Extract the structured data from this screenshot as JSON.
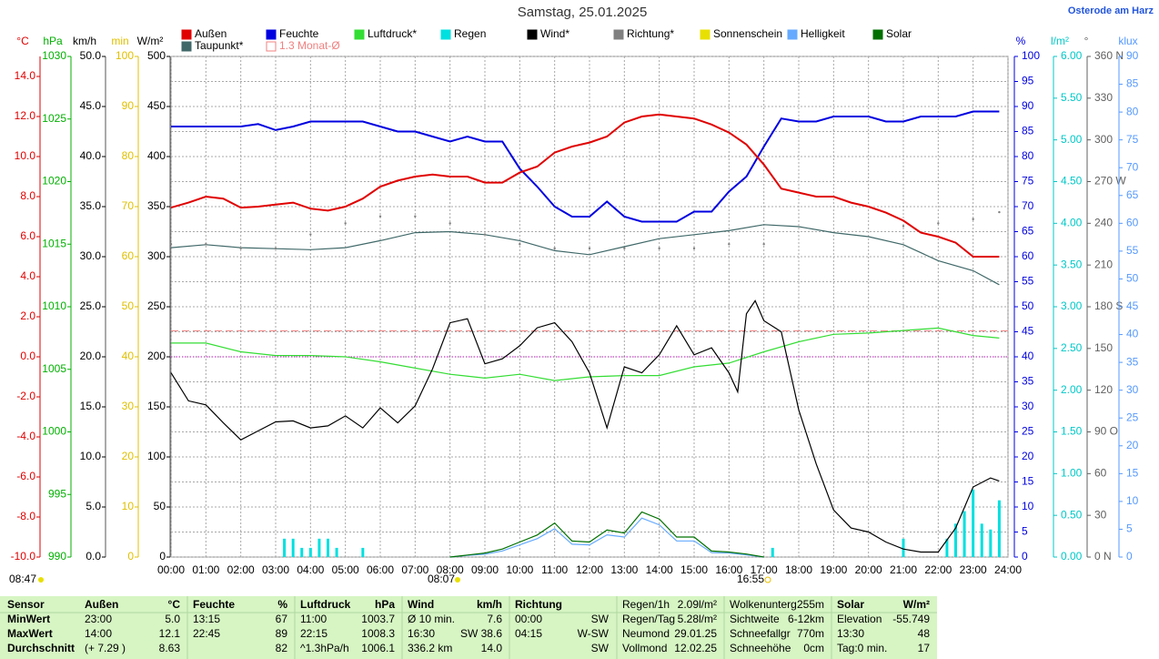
{
  "chart_data": {
    "type": "weather",
    "title": "Samstag, 25.01.2025",
    "location": "Osterode am Harz",
    "legend": [
      {
        "name": "Außen",
        "color": "#e00000"
      },
      {
        "name": "Feuchte",
        "color": "#0000e0"
      },
      {
        "name": "Luftdruck*",
        "color": "#33dd33"
      },
      {
        "name": "Regen",
        "color": "#00e0e0"
      },
      {
        "name": "Wind*",
        "color": "#000000"
      },
      {
        "name": "Richtung*",
        "color": "#808080"
      },
      {
        "name": "Sonnenschein",
        "color": "#e8e000"
      },
      {
        "name": "Helligkeit",
        "color": "#66aaff"
      },
      {
        "name": "Solar",
        "color": "#007000"
      },
      {
        "name": "Taupunkt*",
        "color": "#406868"
      },
      {
        "name": "1.3 Monat-Ø",
        "color": "#f08080"
      }
    ],
    "monthly_avg": 1.3,
    "xlim": [
      0,
      24
    ],
    "xticks": [
      {
        "value": 0,
        "label": "00:00"
      },
      {
        "value": 1,
        "label": "01:00"
      },
      {
        "value": 2,
        "label": "02:00"
      },
      {
        "value": 3,
        "label": "03:00"
      },
      {
        "value": 4,
        "label": "04:00"
      },
      {
        "value": 5,
        "label": "05:00"
      },
      {
        "value": 6,
        "label": "06:00"
      },
      {
        "value": 7,
        "label": "07:00"
      },
      {
        "value": 8,
        "label": "08:00"
      },
      {
        "value": 9,
        "label": "09:00"
      },
      {
        "value": 10,
        "label": "10:00"
      },
      {
        "value": 11,
        "label": "11:00"
      },
      {
        "value": 12,
        "label": "12:00"
      },
      {
        "value": 13,
        "label": "13:00"
      },
      {
        "value": 14,
        "label": "14:00"
      },
      {
        "value": 15,
        "label": "15:00"
      },
      {
        "value": 16,
        "label": "16:00"
      },
      {
        "value": 17,
        "label": "17:00"
      },
      {
        "value": 18,
        "label": "18:00"
      },
      {
        "value": 19,
        "label": "19:00"
      },
      {
        "value": 20,
        "label": "20:00"
      },
      {
        "value": 21,
        "label": "21:00"
      },
      {
        "value": 22,
        "label": "22:00"
      },
      {
        "value": 23,
        "label": "23:00"
      },
      {
        "value": 24,
        "label": "24:00"
      }
    ],
    "axes": [
      {
        "unit": "°C",
        "color": "#e00000",
        "lim": [
          -10,
          15
        ],
        "ticks": [
          {
            "value": -10,
            "label": "-10.0"
          },
          {
            "value": -8,
            "label": "-8.0"
          },
          {
            "value": -6,
            "label": "-6.0"
          },
          {
            "value": -4,
            "label": "-4.0"
          },
          {
            "value": -2,
            "label": "-2.0"
          },
          {
            "value": 0,
            "label": "0.0"
          },
          {
            "value": 2,
            "label": "2.0"
          },
          {
            "value": 4,
            "label": "4.0"
          },
          {
            "value": 6,
            "label": "6.0"
          },
          {
            "value": 8,
            "label": "8.0"
          },
          {
            "value": 10,
            "label": "10.0"
          },
          {
            "value": 12,
            "label": "12.0"
          },
          {
            "value": 14,
            "label": "14.0"
          }
        ]
      },
      {
        "unit": "hPa",
        "color": "#00b000",
        "lim": [
          990,
          1030
        ],
        "ticks": [
          990,
          995,
          1000,
          1005,
          1010,
          1015,
          1020,
          1025,
          1030
        ]
      },
      {
        "unit": "km/h",
        "color": "#000000",
        "lim": [
          0,
          50
        ],
        "ticks": [
          {
            "value": 0,
            "label": "0.0"
          },
          {
            "value": 5,
            "label": "5.0"
          },
          {
            "value": 10,
            "label": "10.0"
          },
          {
            "value": 15,
            "label": "15.0"
          },
          {
            "value": 20,
            "label": "20.0"
          },
          {
            "value": 25,
            "label": "25.0"
          },
          {
            "value": 30,
            "label": "30.0"
          },
          {
            "value": 35,
            "label": "35.0"
          },
          {
            "value": 40,
            "label": "40.0"
          },
          {
            "value": 45,
            "label": "45.0"
          },
          {
            "value": 50,
            "label": "50.0"
          }
        ]
      },
      {
        "unit": "min",
        "color": "#e0c000",
        "lim": [
          0,
          100
        ],
        "ticks": [
          0,
          10,
          20,
          30,
          40,
          50,
          60,
          70,
          80,
          90,
          100
        ]
      },
      {
        "unit": "W/m²",
        "color": "#000000",
        "lim": [
          0,
          500
        ],
        "ticks": [
          0,
          50,
          100,
          150,
          200,
          250,
          300,
          350,
          400,
          450,
          500
        ]
      },
      {
        "unit": "%",
        "color": "#0000e0",
        "lim": [
          0,
          100
        ],
        "ticks": [
          0,
          5,
          10,
          15,
          20,
          25,
          30,
          35,
          40,
          45,
          50,
          55,
          60,
          65,
          70,
          75,
          80,
          85,
          90,
          95,
          100
        ]
      },
      {
        "unit": "l/m²",
        "color": "#00c8c8",
        "lim": [
          0,
          6
        ],
        "ticks": [
          {
            "value": 0,
            "label": "0.00"
          },
          {
            "value": 0.5,
            "label": "0.50"
          },
          {
            "value": 1,
            "label": "1.00"
          },
          {
            "value": 1.5,
            "label": "1.50"
          },
          {
            "value": 2,
            "label": "2.00"
          },
          {
            "value": 2.5,
            "label": "2.50"
          },
          {
            "value": 3,
            "label": "3.00"
          },
          {
            "value": 3.5,
            "label": "3.50"
          },
          {
            "value": 4,
            "label": "4.00"
          },
          {
            "value": 4.5,
            "label": "4.50"
          },
          {
            "value": 5,
            "label": "5.00"
          },
          {
            "value": 5.5,
            "label": "5.50"
          },
          {
            "value": 6,
            "label": "6.00"
          }
        ]
      },
      {
        "unit": "°",
        "color": "#606060",
        "lim": [
          0,
          360
        ],
        "ticks": [
          {
            "value": 0,
            "label": "0 N"
          },
          30,
          60,
          {
            "value": 90,
            "label": "90 O"
          },
          120,
          150,
          {
            "value": 180,
            "label": "180 S"
          },
          210,
          240,
          {
            "value": 270,
            "label": "270 W"
          },
          300,
          330,
          {
            "value": 360,
            "label": "360 N"
          }
        ]
      },
      {
        "unit": "klux",
        "color": "#5599ff",
        "lim": [
          0,
          90
        ],
        "ticks": [
          0,
          5,
          10,
          15,
          20,
          25,
          30,
          35,
          40,
          45,
          50,
          55,
          60,
          65,
          70,
          75,
          80,
          85,
          90
        ]
      }
    ],
    "series": [
      {
        "name": "Luftdruck*",
        "kind": "line",
        "color": "#33dd33",
        "axis": 1,
        "x": [
          0,
          1,
          2,
          3,
          4,
          5,
          6,
          7,
          8,
          9,
          10,
          11,
          12,
          13,
          14,
          15,
          16,
          17,
          18,
          19,
          20,
          21,
          22,
          23,
          23.75
        ],
        "values": [
          1007.1,
          1007.1,
          1006.4,
          1006.1,
          1006.1,
          1006.0,
          1005.6,
          1005.1,
          1004.6,
          1004.3,
          1004.6,
          1004.1,
          1004.4,
          1004.5,
          1004.5,
          1005.2,
          1005.5,
          1006.4,
          1007.2,
          1007.8,
          1007.9,
          1008.1,
          1008.3,
          1007.7,
          1007.5
        ]
      },
      {
        "name": "Taupunkt*",
        "kind": "line",
        "color": "#406868",
        "axis": 0,
        "x": [
          0,
          1,
          2,
          3,
          4,
          5,
          6,
          7,
          8,
          9,
          10,
          11,
          12,
          13,
          14,
          15,
          16,
          17,
          18,
          19,
          20,
          21,
          22,
          23,
          23.75
        ],
        "values": [
          5.45,
          5.6,
          5.45,
          5.4,
          5.35,
          5.45,
          5.8,
          6.2,
          6.25,
          6.1,
          5.8,
          5.3,
          5.1,
          5.5,
          5.9,
          6.1,
          6.3,
          6.6,
          6.5,
          6.2,
          6.0,
          5.6,
          4.8,
          4.3,
          3.6
        ]
      },
      {
        "name": "Richtung*",
        "kind": "dots",
        "color": "#808080",
        "axis": 7,
        "x": [
          0,
          1,
          2,
          3,
          4,
          5,
          6,
          7,
          8,
          9,
          10,
          11,
          12,
          13,
          14,
          15,
          16,
          17,
          18,
          19,
          20,
          21,
          22,
          23,
          23.75
        ],
        "values": [
          225,
          225,
          222,
          222,
          232,
          240,
          245,
          245,
          240,
          232,
          225,
          222,
          222,
          222,
          222,
          222,
          225,
          225,
          null,
          null,
          null,
          238,
          240,
          243,
          248
        ]
      },
      {
        "name": "Regen",
        "kind": "bars",
        "color": "#00e0e0",
        "axis": 6,
        "x": [
          3.25,
          3.5,
          3.75,
          4,
          4.25,
          4.5,
          4.75,
          5.5,
          17.25,
          21,
          22.25,
          22.5,
          22.75,
          23,
          23.25,
          23.5,
          23.75
        ],
        "values": [
          0.22,
          0.22,
          0.11,
          0.11,
          0.22,
          0.22,
          0.11,
          0.11,
          0.11,
          0.22,
          0.22,
          0.4,
          0.55,
          0.81,
          0.4,
          0.33,
          0.68
        ]
      },
      {
        "name": "Helligkeit",
        "kind": "line",
        "color": "#66aaff",
        "axis": 8,
        "x": [
          8,
          8.5,
          9,
          9.5,
          10,
          10.5,
          11,
          11.5,
          12,
          12.5,
          13,
          13.5,
          14,
          14.5,
          15,
          15.5,
          16,
          16.5,
          17
        ],
        "values": [
          0,
          0.3,
          0.5,
          1.1,
          2.2,
          3.3,
          5.1,
          2.3,
          2.2,
          4.0,
          3.6,
          7.0,
          5.8,
          2.9,
          2.9,
          0.8,
          0.7,
          0.4,
          0
        ]
      },
      {
        "name": "Solar",
        "kind": "line",
        "color": "#007000",
        "axis": 4,
        "x": [
          8,
          8.5,
          9,
          9.5,
          10,
          10.5,
          11,
          11.5,
          12,
          12.5,
          13,
          13.5,
          14,
          14.5,
          15,
          15.5,
          16,
          16.5,
          17
        ],
        "values": [
          0,
          2,
          4,
          8,
          15,
          22,
          34,
          16,
          15,
          27,
          24,
          45,
          38,
          20,
          20,
          6,
          5,
          3,
          0
        ]
      },
      {
        "name": "Wind*",
        "kind": "line",
        "color": "#000000",
        "axis": 2,
        "x": [
          0,
          0.5,
          1,
          1.5,
          2,
          2.5,
          3,
          3.5,
          4,
          4.5,
          5,
          5.5,
          6,
          6.5,
          7,
          7.5,
          8,
          8.5,
          9,
          9.5,
          10,
          10.5,
          11,
          11.5,
          12,
          12.5,
          13,
          13.5,
          14,
          14.5,
          15,
          15.5,
          16,
          16.25,
          16.5,
          16.75,
          17,
          17.5,
          18,
          18.5,
          19,
          19.5,
          20,
          20.5,
          21,
          21.5,
          22,
          22.5,
          23,
          23.5,
          23.75
        ],
        "values": [
          18.4,
          15.6,
          15.2,
          13.4,
          11.7,
          12.6,
          13.5,
          13.6,
          12.9,
          13.1,
          14.1,
          12.9,
          14.9,
          13.4,
          15.1,
          18.8,
          23.4,
          23.8,
          19.3,
          19.8,
          21.1,
          22.9,
          23.4,
          21.5,
          18.4,
          12.9,
          19.0,
          18.4,
          20.2,
          23.1,
          20.2,
          20.9,
          18.4,
          16.5,
          24.3,
          25.6,
          23.6,
          22.5,
          14.7,
          9.3,
          4.7,
          2.9,
          2.5,
          1.5,
          0.8,
          0.5,
          0.5,
          2.9,
          7.0,
          7.9,
          7.6
        ]
      },
      {
        "name": "Feuchte",
        "kind": "line",
        "color": "#0000e0",
        "axis": 5,
        "x": [
          0,
          0.5,
          1,
          1.5,
          2,
          2.5,
          3,
          3.5,
          4,
          4.5,
          5,
          5.5,
          6,
          6.5,
          7,
          7.5,
          8,
          8.5,
          9,
          9.5,
          10,
          10.5,
          11,
          11.5,
          12,
          12.5,
          13,
          13.5,
          14,
          14.5,
          15,
          15.5,
          16,
          16.5,
          17,
          17.5,
          18,
          18.5,
          19,
          19.5,
          20,
          20.5,
          21,
          21.5,
          22,
          22.5,
          23,
          23.75
        ],
        "values": [
          86,
          86,
          86,
          86,
          86,
          86.5,
          85.3,
          86,
          87,
          87,
          87,
          87,
          86,
          85,
          85,
          84,
          83,
          84,
          83,
          83,
          77.6,
          74,
          70,
          68,
          68,
          71,
          68,
          67,
          67,
          67,
          69,
          69,
          73,
          76,
          82,
          87.6,
          87,
          87,
          88,
          88,
          88,
          87,
          87,
          88,
          88,
          88,
          89,
          89
        ]
      },
      {
        "name": "Außen",
        "kind": "line",
        "color": "#e00000",
        "axis": 0,
        "x": [
          0,
          0.5,
          1,
          1.5,
          2,
          2.5,
          3,
          3.5,
          4,
          4.5,
          5,
          5.5,
          6,
          6.5,
          7,
          7.5,
          8,
          8.5,
          9,
          9.5,
          10,
          10.5,
          11,
          11.5,
          12,
          12.5,
          13,
          13.5,
          14,
          14.5,
          15,
          15.5,
          16,
          16.5,
          17,
          17.5,
          18,
          18.5,
          19,
          19.5,
          20,
          20.5,
          21,
          21.5,
          22,
          22.5,
          23,
          23.75
        ],
        "values": [
          7.45,
          7.7,
          8.0,
          7.9,
          7.45,
          7.5,
          7.6,
          7.7,
          7.4,
          7.3,
          7.5,
          7.9,
          8.5,
          8.8,
          9.0,
          9.1,
          9.0,
          9.0,
          8.7,
          8.7,
          9.2,
          9.5,
          10.2,
          10.5,
          10.7,
          11.0,
          11.7,
          12.0,
          12.1,
          12.0,
          11.9,
          11.6,
          11.2,
          10.6,
          9.6,
          8.4,
          8.2,
          8.0,
          8.0,
          7.7,
          7.5,
          7.2,
          6.8,
          6.2,
          6.0,
          5.7,
          5.0,
          5.0
        ]
      }
    ],
    "annotations": {
      "sunshine": "08:47",
      "sunrise": "08:07",
      "sunset": "16:55"
    }
  },
  "table": {
    "rows": [
      [
        "Sensor",
        "Außen",
        "°C",
        "Feuchte",
        "%",
        "Luftdruck",
        "hPa",
        "Wind",
        "km/h",
        "Richtung",
        null,
        "Regen/1h",
        "2.09l/m²",
        "Wolkenunterg",
        "255m",
        "Solar",
        "W/m²"
      ],
      [
        "MinWert",
        "23:00",
        "5.0",
        "13:15",
        "67",
        "11:00",
        "1003.7",
        "Ø 10 min.",
        "7.6",
        "00:00",
        "SW",
        "Regen/Tag",
        "5.28l/m²",
        "Sichtweite",
        "6-12km",
        "Elevation",
        "-55.749"
      ],
      [
        "MaxWert",
        "14:00",
        "12.1",
        "22:45",
        "89",
        "22:15",
        "1008.3",
        "16:30",
        "SW 38.6",
        "04:15",
        "W-SW",
        "Neumond",
        "29.01.25",
        "Schneefallgr",
        "770m",
        "13:30",
        "48"
      ],
      [
        "Durchschnitt",
        "(+ 7.29 )",
        "8.63",
        null,
        "82",
        "^1.3hPa/h",
        "1006.1",
        "336.2 km",
        "14.0",
        null,
        "SW",
        "Vollmond",
        "12.02.25",
        "Schneehöhe",
        "0cm",
        "Tag:0 min.",
        "17"
      ]
    ]
  }
}
